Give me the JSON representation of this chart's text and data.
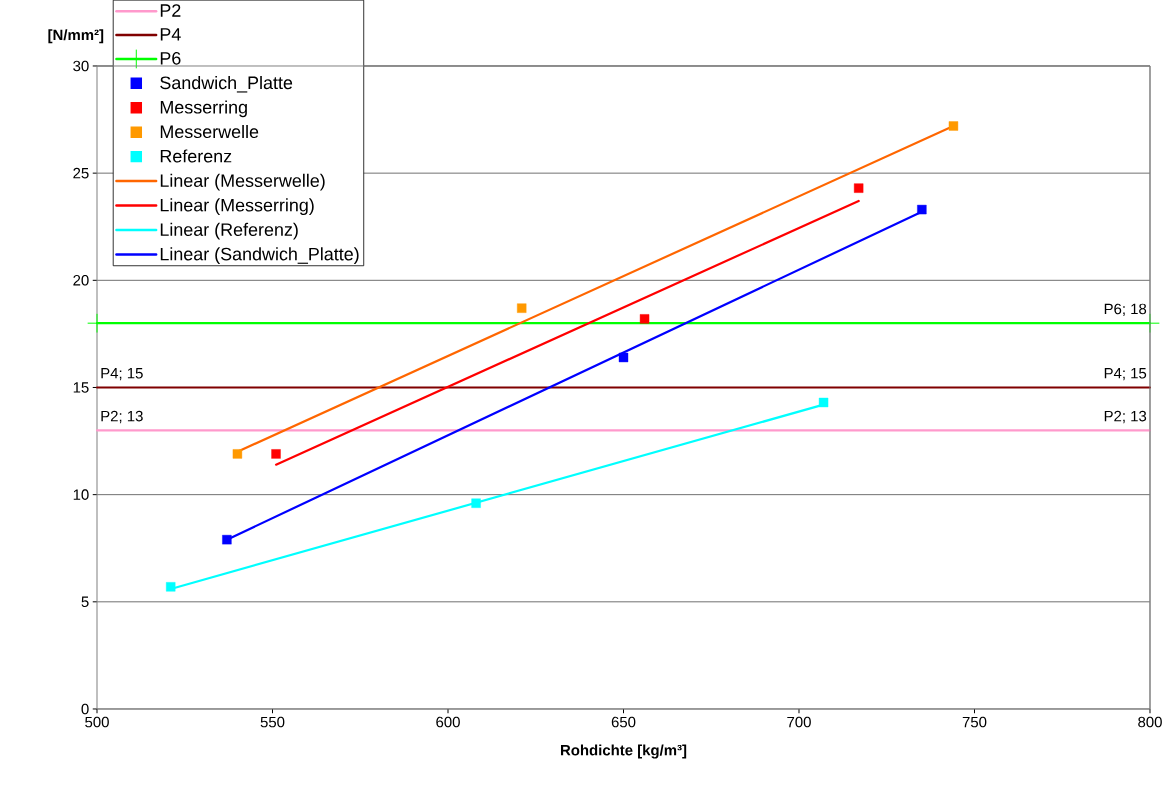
{
  "chart_data": {
    "type": "scatter",
    "xlabel": "Rohdichte [kg/m³]",
    "ylabel": "[N/mm²]",
    "xlim": [
      500,
      800
    ],
    "xticks": [
      500,
      550,
      600,
      650,
      700,
      750,
      800
    ],
    "ylim": [
      0,
      30
    ],
    "yticks": [
      0,
      5,
      10,
      15,
      20,
      25,
      30
    ],
    "grid": "y",
    "legend": "top left",
    "series": [
      {
        "name": "P2",
        "type": "line",
        "color": "#ff99cc",
        "x": [
          500,
          800
        ],
        "values": [
          13,
          13
        ],
        "value_labels": [
          "P2; 13",
          "P2; 13"
        ]
      },
      {
        "name": "P4",
        "type": "line",
        "color": "#800000",
        "x": [
          500,
          800
        ],
        "values": [
          15,
          15
        ],
        "value_labels": [
          "P4; 15",
          "P4; 15"
        ]
      },
      {
        "name": "P6",
        "type": "line",
        "color": "#00ff00",
        "marker": "cross",
        "x": [
          500,
          800
        ],
        "values": [
          18,
          18
        ],
        "value_labels": [
          null,
          "P6; 18"
        ]
      },
      {
        "name": "Sandwich_Platte",
        "type": "scatter",
        "color": "#0000ff",
        "marker": "square",
        "x": [
          537,
          650,
          735
        ],
        "values": [
          7.9,
          16.4,
          23.3
        ]
      },
      {
        "name": "Messerring",
        "type": "scatter",
        "color": "#ff0000",
        "marker": "square",
        "x": [
          551,
          656,
          717
        ],
        "values": [
          11.9,
          18.2,
          24.3
        ]
      },
      {
        "name": "Messerwelle",
        "type": "scatter",
        "color": "#ff9900",
        "marker": "square",
        "x": [
          540,
          621,
          744
        ],
        "values": [
          11.9,
          18.7,
          27.2
        ]
      },
      {
        "name": "Referenz",
        "type": "scatter",
        "color": "#00ffff",
        "marker": "square",
        "x": [
          521,
          608,
          707
        ],
        "values": [
          5.7,
          9.6,
          14.3
        ]
      },
      {
        "name": "Linear (Messerwelle)",
        "type": "line",
        "color": "#ff6600",
        "x": [
          540,
          744
        ],
        "values": [
          12.0,
          27.2
        ]
      },
      {
        "name": "Linear (Messerring)",
        "type": "line",
        "color": "#ff0000",
        "x": [
          551,
          717
        ],
        "values": [
          11.4,
          23.7
        ]
      },
      {
        "name": "Linear (Referenz)",
        "type": "line",
        "color": "#00ffff",
        "x": [
          521,
          707
        ],
        "values": [
          5.6,
          14.2
        ]
      },
      {
        "name": "Linear (Sandwich_Platte)",
        "type": "line",
        "color": "#0000ff",
        "x": [
          537,
          735
        ],
        "values": [
          7.9,
          23.2
        ]
      }
    ]
  }
}
